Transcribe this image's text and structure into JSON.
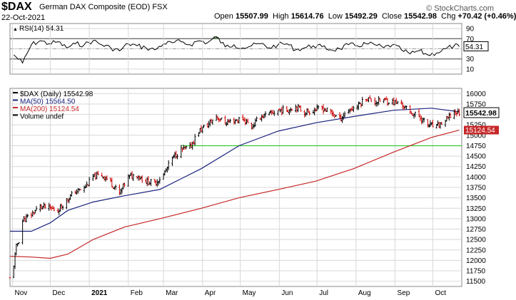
{
  "header": {
    "symbol": "$DAX",
    "name": "German DAX Composite (EOD)",
    "exchange": "FSX",
    "date": "22-Oct-2021",
    "open_label": "Open",
    "open": "15507.99",
    "high_label": "High",
    "high": "15614.76",
    "low_label": "Low",
    "low": "15492.29",
    "close_label": "Close",
    "close": "15542.98",
    "chg_label": "Chg",
    "chg": "+70.42 (+0.46%)",
    "credit": "© StockCharts.com"
  },
  "colors": {
    "rsi_line": "#000000",
    "rsi_overbought_fill": "#4a7a3a",
    "price_up": "#000000",
    "price_down": "#cc0000",
    "ma50": "#1a237e",
    "ma200": "#c62828",
    "support_line": "#33cc33",
    "grid": "#d8d8d8",
    "close_badge_border": "#000000",
    "ma200_badge_bg": "#c62828"
  },
  "chart_data": [
    {
      "type": "line",
      "panel": "rsi",
      "legend": "RSI(14) 54.31",
      "current_value_label": "54.31",
      "y_ticks": [
        "90",
        "70",
        "50",
        "30",
        "10"
      ],
      "reference_lines": [
        70,
        50,
        30
      ],
      "ylim": [
        0,
        100
      ],
      "series": [
        {
          "name": "RSI(14)",
          "x": [
            "2020-11-02",
            "2020-11-09",
            "2020-11-16",
            "2020-11-23",
            "2020-11-30",
            "2020-12-07",
            "2020-12-14",
            "2020-12-21",
            "2020-12-28",
            "2021-01-04",
            "2021-01-11",
            "2021-01-18",
            "2021-01-25",
            "2021-02-01",
            "2021-02-08",
            "2021-02-15",
            "2021-02-22",
            "2021-03-01",
            "2021-03-08",
            "2021-03-15",
            "2021-03-22",
            "2021-03-29",
            "2021-04-05",
            "2021-04-12",
            "2021-04-19",
            "2021-04-26",
            "2021-05-03",
            "2021-05-10",
            "2021-05-17",
            "2021-05-24",
            "2021-05-31",
            "2021-06-07",
            "2021-06-14",
            "2021-06-21",
            "2021-06-28",
            "2021-07-05",
            "2021-07-12",
            "2021-07-19",
            "2021-07-26",
            "2021-08-02",
            "2021-08-09",
            "2021-08-16",
            "2021-08-23",
            "2021-08-30",
            "2021-09-06",
            "2021-09-13",
            "2021-09-20",
            "2021-09-27",
            "2021-10-04",
            "2021-10-11",
            "2021-10-18",
            "2021-10-22"
          ],
          "values": [
            38,
            22,
            58,
            66,
            60,
            64,
            52,
            60,
            58,
            66,
            58,
            52,
            46,
            60,
            56,
            52,
            48,
            60,
            62,
            64,
            58,
            66,
            62,
            74,
            54,
            58,
            52,
            56,
            60,
            52,
            58,
            60,
            48,
            52,
            56,
            54,
            48,
            50,
            58,
            56,
            60,
            58,
            52,
            58,
            48,
            40,
            46,
            38,
            42,
            50,
            56,
            54.31
          ]
        }
      ]
    },
    {
      "type": "line",
      "panel": "price",
      "legend": [
        "$DAX (Daily) 15542.98",
        "MA(50) 15564.50",
        "MA(200) 15124.54",
        "Volume undef"
      ],
      "x_tick_labels": [
        "Nov",
        "Dec",
        "2021",
        "Feb",
        "Mar",
        "Apr",
        "May",
        "Jun",
        "Jul",
        "Aug",
        "Sep",
        "Oct"
      ],
      "y_ticks": [
        "16000",
        "15750",
        "15500",
        "15250",
        "15000",
        "14750",
        "14500",
        "14250",
        "14000",
        "13750",
        "13500",
        "13250",
        "13000",
        "12750",
        "12500",
        "12250",
        "12000",
        "11750",
        "11500"
      ],
      "ylim": [
        11375,
        16125
      ],
      "value_badges": [
        "15542.98",
        "15124.54"
      ],
      "horizontal_line": {
        "value": 14750,
        "from": "2021-03-15",
        "to": "2021-10-22"
      },
      "series": [
        {
          "name": "$DAX (Daily)",
          "x": [
            "2020-10-30",
            "2020-11-02",
            "2020-11-04",
            "2020-11-06",
            "2020-11-09",
            "2020-11-16",
            "2020-11-23",
            "2020-11-30",
            "2020-12-07",
            "2020-12-14",
            "2020-12-21",
            "2020-12-28",
            "2021-01-04",
            "2021-01-11",
            "2021-01-18",
            "2021-01-25",
            "2021-02-01",
            "2021-02-08",
            "2021-02-15",
            "2021-02-22",
            "2021-03-01",
            "2021-03-08",
            "2021-03-15",
            "2021-03-22",
            "2021-03-29",
            "2021-04-05",
            "2021-04-12",
            "2021-04-19",
            "2021-04-26",
            "2021-05-03",
            "2021-05-10",
            "2021-05-17",
            "2021-05-24",
            "2021-05-31",
            "2021-06-07",
            "2021-06-14",
            "2021-06-21",
            "2021-06-28",
            "2021-07-05",
            "2021-07-12",
            "2021-07-19",
            "2021-07-26",
            "2021-08-02",
            "2021-08-09",
            "2021-08-16",
            "2021-08-23",
            "2021-08-30",
            "2021-09-06",
            "2021-09-13",
            "2021-09-20",
            "2021-09-27",
            "2021-10-04",
            "2021-10-11",
            "2021-10-18",
            "2021-10-22"
          ],
          "values": [
            11560,
            11900,
            12320,
            12480,
            12950,
            13100,
            13300,
            13250,
            13200,
            13450,
            13650,
            13730,
            14000,
            14050,
            13880,
            13600,
            14000,
            14050,
            13900,
            13850,
            14050,
            14450,
            14650,
            14700,
            15100,
            15250,
            15450,
            15300,
            15350,
            15400,
            15200,
            15450,
            15500,
            15600,
            15600,
            15700,
            15550,
            15600,
            15650,
            15550,
            15400,
            15600,
            15700,
            15900,
            15800,
            15850,
            15800,
            15750,
            15550,
            15450,
            15250,
            15200,
            15350,
            15550,
            15542.98
          ]
        },
        {
          "name": "MA(50)",
          "x": [
            "2020-10-30",
            "2020-11-16",
            "2020-12-01",
            "2020-12-15",
            "2021-01-04",
            "2021-01-29",
            "2021-02-26",
            "2021-03-31",
            "2021-04-30",
            "2021-05-31",
            "2021-06-30",
            "2021-07-30",
            "2021-08-31",
            "2021-09-30",
            "2021-10-22"
          ],
          "values": [
            12700,
            12700,
            12900,
            13200,
            13400,
            13550,
            13700,
            14200,
            14750,
            15100,
            15300,
            15450,
            15600,
            15650,
            15564.5
          ]
        },
        {
          "name": "MA(200)",
          "x": [
            "2020-10-30",
            "2020-11-16",
            "2020-12-01",
            "2020-12-15",
            "2021-01-04",
            "2021-01-29",
            "2021-02-26",
            "2021-03-31",
            "2021-04-30",
            "2021-05-31",
            "2021-06-30",
            "2021-07-30",
            "2021-08-31",
            "2021-09-30",
            "2021-10-22"
          ],
          "values": [
            12100,
            12080,
            12050,
            12150,
            12500,
            12800,
            13000,
            13250,
            13500,
            13700,
            13900,
            14200,
            14600,
            14950,
            15124.54
          ]
        }
      ]
    }
  ]
}
